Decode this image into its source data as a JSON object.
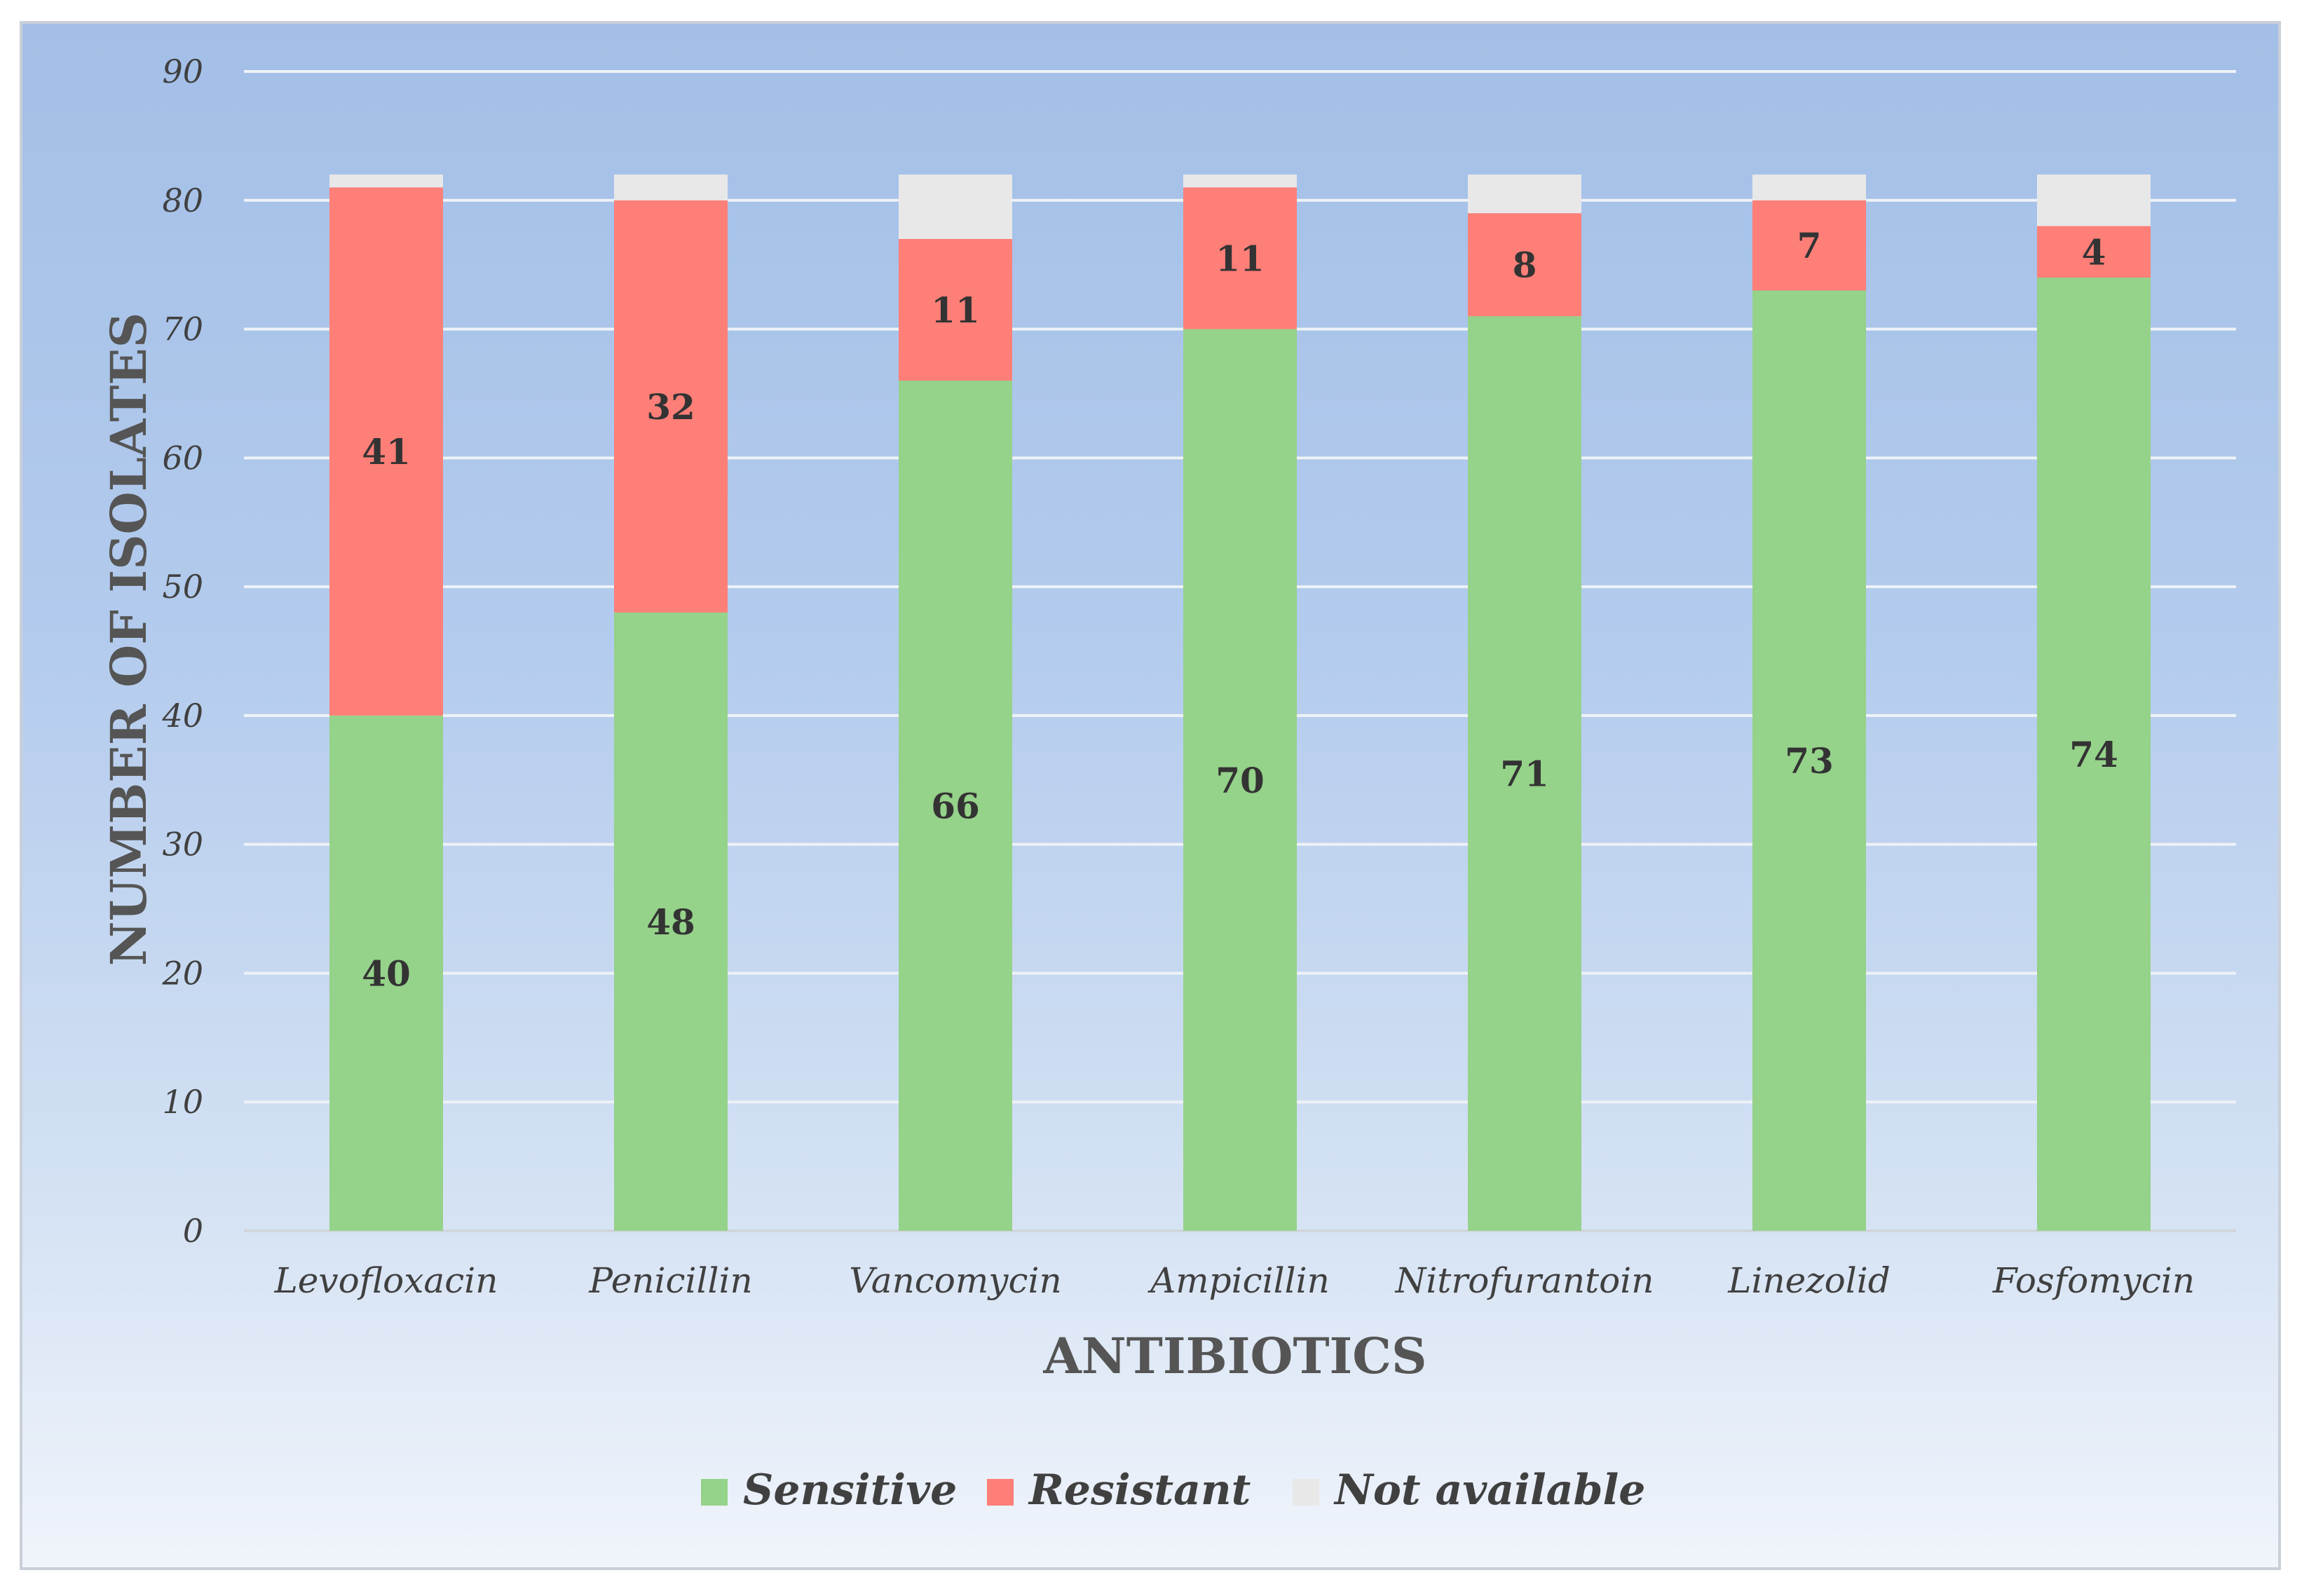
{
  "chart_data": {
    "type": "bar",
    "stacked": true,
    "categories": [
      "Levofloxacin",
      "Penicillin",
      "Vancomycin",
      "Ampicillin",
      "Nitrofurantoin",
      "Linezolid",
      "Fosfomycin"
    ],
    "series": [
      {
        "name": "Sensitive",
        "color": "#95d28a",
        "values": [
          40,
          48,
          66,
          70,
          71,
          73,
          74
        ],
        "labels": [
          "40",
          "48",
          "66",
          "70",
          "71",
          "73",
          "74"
        ]
      },
      {
        "name": "Resistant",
        "color": "#fe7f78",
        "values": [
          41,
          32,
          11,
          11,
          8,
          7,
          4
        ],
        "labels": [
          "41",
          "32",
          "11",
          "11",
          "8",
          "7",
          "4"
        ]
      },
      {
        "name": "Not available",
        "color": "#e8e8e8",
        "values": [
          1,
          2,
          5,
          1,
          3,
          2,
          4
        ],
        "labels": [
          "",
          "",
          "",
          "",
          "",
          "",
          ""
        ]
      }
    ],
    "xlabel": "ANTIBIOTICS",
    "ylabel": "NUMBER OF ISOLATES",
    "ylim": [
      0,
      90
    ],
    "yticks": [
      "0",
      "10",
      "20",
      "30",
      "40",
      "50",
      "60",
      "70",
      "80",
      "90"
    ],
    "grid": true,
    "legend_position": "bottom"
  }
}
